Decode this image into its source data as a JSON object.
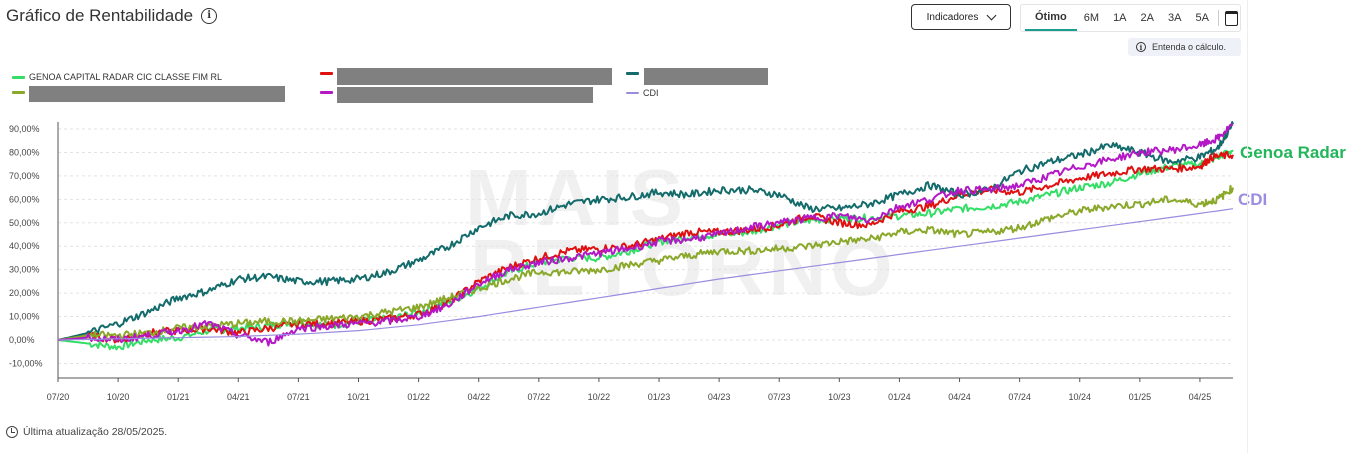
{
  "header": {
    "title": "Gráfico de Rentabilidade",
    "indicators_label": "Indicadores",
    "periods": [
      "Ótimo",
      "6M",
      "1A",
      "2A",
      "3A",
      "5A"
    ],
    "active_period": "Ótimo",
    "understand_label": "Entenda o cálculo."
  },
  "legend": [
    {
      "name": "GENOA CAPITAL RADAR CIC CLASSE FIM RL",
      "color": "#33dd66",
      "redacted": false
    },
    {
      "name": "",
      "color": "#e01010",
      "redacted": true
    },
    {
      "name": "",
      "color": "#136b6b",
      "redacted": true
    },
    {
      "name": "",
      "color": "#8aa82a",
      "redacted": true
    },
    {
      "name": "",
      "color": "#b418c6",
      "redacted": true
    },
    {
      "name": "CDI",
      "color": "#9b8ce0",
      "redacted": false
    }
  ],
  "annotations": {
    "genoa": "Genoa Radar",
    "cdi": "CDI"
  },
  "watermark": [
    "MAIS",
    "RETORNO"
  ],
  "footer": {
    "last_update": "Última atualização 28/05/2025."
  },
  "chart_data": {
    "type": "line",
    "title": "Gráfico de Rentabilidade",
    "xlabel": "",
    "ylabel": "",
    "x_ticks": [
      "07/20",
      "10/20",
      "01/21",
      "04/21",
      "07/21",
      "10/21",
      "01/22",
      "04/22",
      "07/22",
      "10/22",
      "01/23",
      "04/23",
      "07/23",
      "10/23",
      "01/24",
      "04/24",
      "07/24",
      "10/24",
      "01/25",
      "04/25"
    ],
    "y_ticks": [
      "-10,00%",
      "0,00%",
      "10,00%",
      "20,00%",
      "30,00%",
      "40,00%",
      "50,00%",
      "60,00%",
      "70,00%",
      "80,00%",
      "90,00%"
    ],
    "ylim": [
      -12,
      93
    ],
    "x_end": 19.55,
    "grid": true,
    "legend_position": "top-left",
    "series": [
      {
        "name": "GENOA CAPITAL RADAR CIC CLASSE FIM RL",
        "color": "#33dd66",
        "values": [
          [
            0,
            0
          ],
          [
            0.5,
            -1.5
          ],
          [
            1,
            -3
          ],
          [
            1.5,
            0
          ],
          [
            2,
            1
          ],
          [
            2.5,
            4
          ],
          [
            3,
            5
          ],
          [
            3.5,
            6
          ],
          [
            4,
            8
          ],
          [
            4.5,
            6
          ],
          [
            5,
            8
          ],
          [
            5.5,
            9
          ],
          [
            6,
            12
          ],
          [
            6.5,
            16
          ],
          [
            7,
            22
          ],
          [
            7.5,
            29
          ],
          [
            8,
            33
          ],
          [
            8.5,
            35
          ],
          [
            9,
            35
          ],
          [
            9.5,
            38
          ],
          [
            10,
            42
          ],
          [
            10.5,
            44
          ],
          [
            11,
            45
          ],
          [
            11.5,
            46
          ],
          [
            12,
            49
          ],
          [
            12.5,
            51
          ],
          [
            13,
            52
          ],
          [
            13.5,
            52
          ],
          [
            14,
            53
          ],
          [
            14.5,
            54
          ],
          [
            15,
            56
          ],
          [
            15.5,
            57
          ],
          [
            16,
            59
          ],
          [
            16.5,
            62
          ],
          [
            17,
            65
          ],
          [
            17.5,
            67
          ],
          [
            18,
            71
          ],
          [
            18.5,
            74
          ],
          [
            19,
            75
          ],
          [
            19.3,
            78
          ],
          [
            19.55,
            81
          ]
        ]
      },
      {
        "name": "",
        "color": "#e01010",
        "values": [
          [
            0,
            0
          ],
          [
            0.5,
            2
          ],
          [
            1,
            0
          ],
          [
            1.5,
            3
          ],
          [
            2,
            4
          ],
          [
            2.5,
            5
          ],
          [
            3,
            3
          ],
          [
            3.5,
            5
          ],
          [
            4,
            7
          ],
          [
            4.5,
            7
          ],
          [
            5,
            8
          ],
          [
            5.5,
            9
          ],
          [
            6,
            11
          ],
          [
            6.5,
            16
          ],
          [
            7,
            25
          ],
          [
            7.5,
            31
          ],
          [
            8,
            35
          ],
          [
            8.5,
            38
          ],
          [
            9,
            39
          ],
          [
            9.5,
            40
          ],
          [
            10,
            43
          ],
          [
            10.5,
            46
          ],
          [
            11,
            46
          ],
          [
            11.5,
            47
          ],
          [
            12,
            49
          ],
          [
            12.5,
            53
          ],
          [
            13,
            50
          ],
          [
            13.5,
            49
          ],
          [
            14,
            55
          ],
          [
            14.5,
            57
          ],
          [
            15,
            62
          ],
          [
            15.5,
            64
          ],
          [
            16,
            63
          ],
          [
            16.5,
            66
          ],
          [
            17,
            69
          ],
          [
            17.5,
            71
          ],
          [
            18,
            73
          ],
          [
            18.5,
            73
          ],
          [
            19,
            74
          ],
          [
            19.2,
            78
          ],
          [
            19.55,
            79
          ]
        ]
      },
      {
        "name": "",
        "color": "#136b6b",
        "values": [
          [
            0,
            0
          ],
          [
            0.5,
            3
          ],
          [
            1,
            7
          ],
          [
            1.5,
            12
          ],
          [
            2,
            18
          ],
          [
            2.5,
            21
          ],
          [
            3,
            26
          ],
          [
            3.5,
            27
          ],
          [
            4,
            25
          ],
          [
            4.5,
            25
          ],
          [
            5,
            26
          ],
          [
            5.5,
            29
          ],
          [
            6,
            34
          ],
          [
            6.5,
            40
          ],
          [
            7,
            48
          ],
          [
            7.5,
            53
          ],
          [
            8,
            54
          ],
          [
            8.5,
            58
          ],
          [
            9,
            60
          ],
          [
            9.5,
            61
          ],
          [
            10,
            63
          ],
          [
            10.5,
            62
          ],
          [
            11,
            64
          ],
          [
            11.5,
            64
          ],
          [
            12,
            62
          ],
          [
            12.5,
            56
          ],
          [
            13,
            56
          ],
          [
            13.5,
            58
          ],
          [
            14,
            62
          ],
          [
            14.5,
            66
          ],
          [
            15,
            62
          ],
          [
            15.5,
            64
          ],
          [
            16,
            72
          ],
          [
            16.5,
            76
          ],
          [
            17,
            79
          ],
          [
            17.5,
            83
          ],
          [
            18,
            80
          ],
          [
            18.5,
            76
          ],
          [
            19,
            78
          ],
          [
            19.3,
            82
          ],
          [
            19.55,
            92
          ]
        ]
      },
      {
        "name": "",
        "color": "#8aa82a",
        "values": [
          [
            0,
            0
          ],
          [
            0.5,
            2
          ],
          [
            1,
            2
          ],
          [
            1.5,
            3
          ],
          [
            2,
            5
          ],
          [
            2.5,
            6
          ],
          [
            3,
            7
          ],
          [
            3.5,
            8
          ],
          [
            4,
            8
          ],
          [
            4.5,
            9
          ],
          [
            5,
            10
          ],
          [
            5.5,
            12
          ],
          [
            6,
            14
          ],
          [
            6.5,
            18
          ],
          [
            7,
            22
          ],
          [
            7.5,
            26
          ],
          [
            8,
            29
          ],
          [
            8.5,
            29
          ],
          [
            9,
            30
          ],
          [
            9.5,
            32
          ],
          [
            10,
            34
          ],
          [
            10.5,
            36
          ],
          [
            11,
            38
          ],
          [
            11.5,
            38
          ],
          [
            12,
            39
          ],
          [
            12.5,
            40
          ],
          [
            13,
            42
          ],
          [
            13.5,
            43
          ],
          [
            14,
            46
          ],
          [
            14.5,
            47
          ],
          [
            15,
            45
          ],
          [
            15.5,
            46
          ],
          [
            16,
            48
          ],
          [
            16.5,
            52
          ],
          [
            17,
            55
          ],
          [
            17.5,
            57
          ],
          [
            18,
            58
          ],
          [
            18.5,
            60
          ],
          [
            19,
            58
          ],
          [
            19.3,
            60
          ],
          [
            19.55,
            65
          ]
        ]
      },
      {
        "name": "",
        "color": "#b418c6",
        "values": [
          [
            0,
            0
          ],
          [
            0.5,
            1
          ],
          [
            1,
            0
          ],
          [
            1.5,
            2
          ],
          [
            2,
            4
          ],
          [
            2.5,
            7
          ],
          [
            3,
            2
          ],
          [
            3.5,
            -1
          ],
          [
            4,
            5
          ],
          [
            4.5,
            6
          ],
          [
            5,
            7
          ],
          [
            5.5,
            8
          ],
          [
            6,
            10
          ],
          [
            6.5,
            15
          ],
          [
            7,
            24
          ],
          [
            7.5,
            30
          ],
          [
            8,
            33
          ],
          [
            8.5,
            35
          ],
          [
            9,
            37
          ],
          [
            9.5,
            39
          ],
          [
            10,
            42
          ],
          [
            10.5,
            43
          ],
          [
            11,
            45
          ],
          [
            11.5,
            48
          ],
          [
            12,
            50
          ],
          [
            12.5,
            52
          ],
          [
            13,
            53
          ],
          [
            13.5,
            51
          ],
          [
            14,
            57
          ],
          [
            14.5,
            60
          ],
          [
            15,
            64
          ],
          [
            15.5,
            64
          ],
          [
            16,
            66
          ],
          [
            16.5,
            70
          ],
          [
            17,
            74
          ],
          [
            17.5,
            77
          ],
          [
            18,
            80
          ],
          [
            18.5,
            81
          ],
          [
            19,
            83
          ],
          [
            19.3,
            86
          ],
          [
            19.55,
            92
          ]
        ]
      },
      {
        "name": "CDI",
        "color": "#9b8ce0",
        "values": [
          [
            0,
            0
          ],
          [
            1,
            0.5
          ],
          [
            2,
            1
          ],
          [
            3,
            1.5
          ],
          [
            4,
            2.5
          ],
          [
            5,
            4
          ],
          [
            6,
            6.5
          ],
          [
            7,
            10
          ],
          [
            8,
            14
          ],
          [
            9,
            18
          ],
          [
            10,
            22
          ],
          [
            11,
            26
          ],
          [
            12,
            29.5
          ],
          [
            13,
            33
          ],
          [
            14,
            36.5
          ],
          [
            15,
            40
          ],
          [
            16,
            43.5
          ],
          [
            17,
            47
          ],
          [
            18,
            50.5
          ],
          [
            19,
            54
          ],
          [
            19.55,
            56
          ]
        ]
      }
    ]
  }
}
